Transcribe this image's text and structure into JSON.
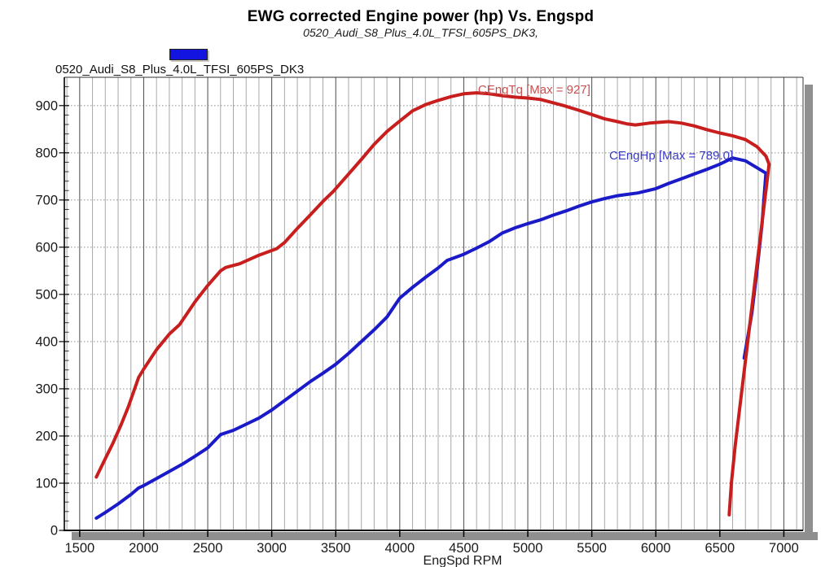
{
  "title": "EWG corrected Engine power (hp) Vs. Engspd",
  "subtitle": "0520_Audi_S8_Plus_4.0L_TFSI_605PS_DK3,",
  "legend": {
    "swatch_color": "#1414e0",
    "label": "0520_Audi_S8_Plus_4.0L_TFSI_605PS_DK3"
  },
  "chart_data": {
    "type": "line",
    "title": "EWG corrected Engine power (hp) Vs. Engspd",
    "subtitle": "0520_Audi_S8_Plus_4.0L_TFSI_605PS_DK3,",
    "xlabel": "EngSpd RPM",
    "ylabel": "",
    "xlim": [
      1380,
      7150
    ],
    "ylim": [
      0,
      960
    ],
    "x_ticks": [
      1500,
      2000,
      2500,
      3000,
      3500,
      4000,
      4500,
      5000,
      5500,
      6000,
      6500,
      7000
    ],
    "x_minor_step": 100,
    "y_ticks": [
      0,
      100,
      200,
      300,
      400,
      500,
      600,
      700,
      800,
      900
    ],
    "y_minor_step": 20,
    "grid": {
      "vertical": "solid",
      "horizontal": "dotted"
    },
    "legend_position": "top-left",
    "series": [
      {
        "name": "CEngHp",
        "label": "CEngHp [Max = 789.0]",
        "max": 789.0,
        "color": "#1a1ac8",
        "label_color": "#3a3ac8",
        "label_pos": [
          6120,
          795
        ],
        "points": [
          [
            1630,
            26
          ],
          [
            1700,
            38
          ],
          [
            1800,
            56
          ],
          [
            1900,
            76
          ],
          [
            1960,
            90
          ],
          [
            2000,
            95
          ],
          [
            2100,
            110
          ],
          [
            2200,
            125
          ],
          [
            2300,
            140
          ],
          [
            2400,
            157
          ],
          [
            2500,
            175
          ],
          [
            2600,
            203
          ],
          [
            2700,
            212
          ],
          [
            2800,
            225
          ],
          [
            2900,
            238
          ],
          [
            3000,
            255
          ],
          [
            3100,
            275
          ],
          [
            3200,
            295
          ],
          [
            3300,
            315
          ],
          [
            3400,
            333
          ],
          [
            3500,
            352
          ],
          [
            3600,
            375
          ],
          [
            3700,
            400
          ],
          [
            3800,
            425
          ],
          [
            3900,
            452
          ],
          [
            4000,
            492
          ],
          [
            4100,
            515
          ],
          [
            4200,
            536
          ],
          [
            4300,
            556
          ],
          [
            4370,
            572
          ],
          [
            4500,
            585
          ],
          [
            4600,
            598
          ],
          [
            4700,
            612
          ],
          [
            4800,
            630
          ],
          [
            4900,
            641
          ],
          [
            5000,
            650
          ],
          [
            5100,
            658
          ],
          [
            5200,
            668
          ],
          [
            5300,
            677
          ],
          [
            5400,
            687
          ],
          [
            5500,
            696
          ],
          [
            5600,
            703
          ],
          [
            5700,
            709
          ],
          [
            5860,
            715
          ],
          [
            6000,
            724
          ],
          [
            6100,
            735
          ],
          [
            6200,
            745
          ],
          [
            6300,
            755
          ],
          [
            6400,
            765
          ],
          [
            6500,
            776
          ],
          [
            6600,
            789
          ],
          [
            6700,
            783
          ],
          [
            6860,
            757
          ],
          [
            6830,
            650
          ],
          [
            6790,
            550
          ],
          [
            6750,
            460
          ],
          [
            6690,
            365
          ]
        ]
      },
      {
        "name": "CEngTq",
        "label": "CEngTq [Max = 927]",
        "max": 927,
        "color": "#c81e1e",
        "label_color": "#c85050",
        "label_pos": [
          5050,
          935
        ],
        "points": [
          [
            1630,
            113
          ],
          [
            1700,
            152
          ],
          [
            1760,
            185
          ],
          [
            1820,
            222
          ],
          [
            1880,
            262
          ],
          [
            1960,
            324
          ],
          [
            2000,
            342
          ],
          [
            2100,
            383
          ],
          [
            2200,
            416
          ],
          [
            2280,
            436
          ],
          [
            2400,
            484
          ],
          [
            2500,
            519
          ],
          [
            2600,
            550
          ],
          [
            2640,
            557
          ],
          [
            2750,
            565
          ],
          [
            2900,
            583
          ],
          [
            3040,
            597
          ],
          [
            3100,
            610
          ],
          [
            3200,
            640
          ],
          [
            3300,
            668
          ],
          [
            3400,
            697
          ],
          [
            3480,
            718
          ],
          [
            3600,
            755
          ],
          [
            3700,
            786
          ],
          [
            3800,
            818
          ],
          [
            3900,
            845
          ],
          [
            3980,
            863
          ],
          [
            4100,
            889
          ],
          [
            4200,
            902
          ],
          [
            4300,
            911
          ],
          [
            4400,
            919
          ],
          [
            4500,
            925
          ],
          [
            4600,
            927
          ],
          [
            4700,
            925
          ],
          [
            4800,
            921
          ],
          [
            4900,
            918
          ],
          [
            5000,
            916
          ],
          [
            5100,
            913
          ],
          [
            5280,
            900
          ],
          [
            5400,
            890
          ],
          [
            5500,
            881
          ],
          [
            5600,
            872
          ],
          [
            5700,
            866
          ],
          [
            5780,
            861
          ],
          [
            5840,
            859
          ],
          [
            5950,
            863
          ],
          [
            6100,
            866
          ],
          [
            6200,
            863
          ],
          [
            6300,
            857
          ],
          [
            6400,
            849
          ],
          [
            6500,
            842
          ],
          [
            6600,
            836
          ],
          [
            6700,
            828
          ],
          [
            6790,
            813
          ],
          [
            6860,
            793
          ],
          [
            6885,
            776
          ],
          [
            6860,
            720
          ],
          [
            6820,
            630
          ],
          [
            6780,
            540
          ],
          [
            6740,
            450
          ],
          [
            6700,
            360
          ],
          [
            6660,
            270
          ],
          [
            6620,
            180
          ],
          [
            6590,
            100
          ],
          [
            6573,
            33
          ]
        ]
      }
    ]
  }
}
